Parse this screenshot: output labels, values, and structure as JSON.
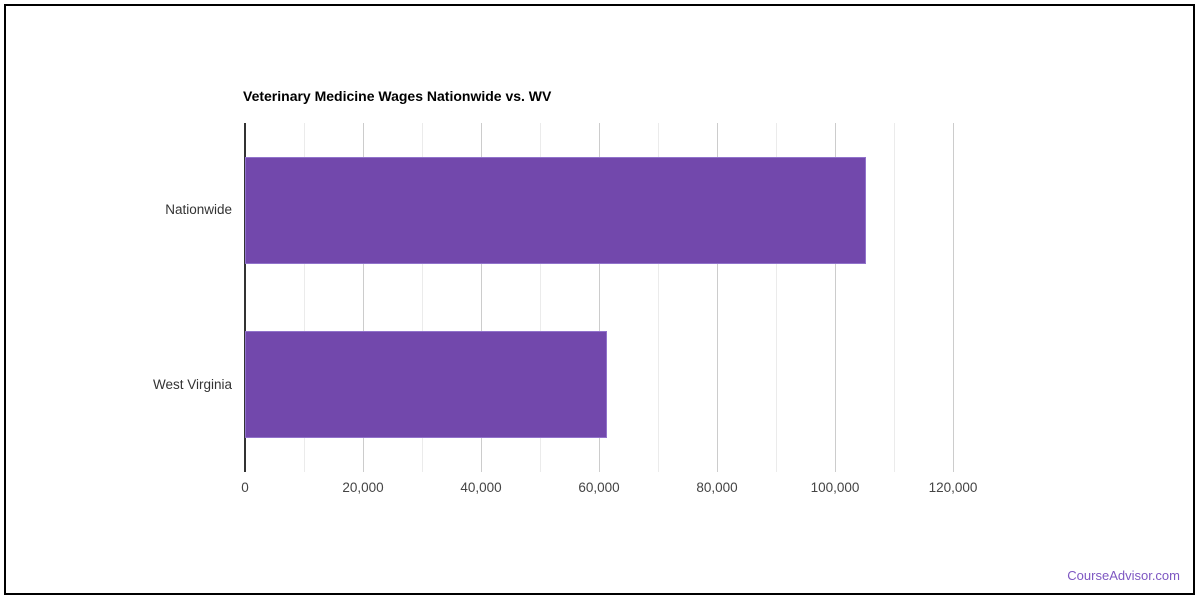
{
  "page": {
    "background_color": "#ffffff",
    "frame_border_color": "#000000"
  },
  "chart_data": {
    "type": "bar",
    "orientation": "horizontal",
    "title": "Veterinary Medicine Wages Nationwide vs. WV",
    "categories": [
      "Nationwide",
      "West Virginia"
    ],
    "values": [
      105250,
      61350
    ],
    "xlabel": "",
    "ylabel": "",
    "xlim": [
      0,
      120000
    ],
    "x_tick_interval": 20000,
    "x_gridline_interval": 10000,
    "x_tick_labels": [
      "0",
      "20,000",
      "40,000",
      "60,000",
      "80,000",
      "100,000",
      "120,000"
    ],
    "grid": true,
    "legend_position": "none",
    "bar_color": "#7248AC",
    "bar_border_color": "#9173CB",
    "axis_line_color": "#333333",
    "major_gridline_color": "#cccccc",
    "minor_gridline_color": "#ebebeb",
    "title_color": "#000000",
    "category_label_color": "#333333",
    "tick_label_color": "#444444"
  },
  "footer": {
    "link_label": "CourseAdvisor.com",
    "link_color": "#7E57C2"
  }
}
